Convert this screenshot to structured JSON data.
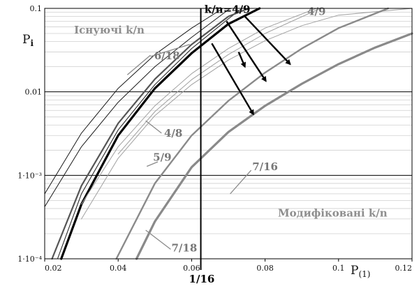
{
  "chart_data": {
    "type": "line",
    "x_label_main": "P",
    "x_label_sub": "(1)",
    "y_label_main": "P",
    "y_label_sub": "i",
    "xlim": [
      0.02,
      0.12
    ],
    "ylim": [
      0.0001,
      0.1
    ],
    "y_scale": "log",
    "x_ticks": [
      0.02,
      0.04,
      0.06,
      0.08,
      0.1,
      0.12
    ],
    "x_tick_labels": [
      "0.02",
      "0.04",
      "0.06",
      "0.08",
      "0.1",
      "0.12"
    ],
    "y_major_ticks": [
      0.0001,
      0.001,
      0.01,
      0.1
    ],
    "y_tick_labels": [
      "1·10⁻⁴",
      "1·10⁻³",
      "0.01",
      "0.1"
    ],
    "grid": {
      "horizontal_minor": true,
      "vertical": false
    },
    "vertical_marker": {
      "x": 0.0625,
      "label": "1/16"
    },
    "regions": [
      {
        "text": "Існуючі k/n",
        "x": 0.028,
        "y": 0.05
      },
      {
        "text": "Модифіковані k/n",
        "x": 0.0835,
        "y": 0.00032
      }
    ],
    "series": [
      {
        "role": "existing-thin",
        "color": "#1a1a1a",
        "width": 1.0,
        "points": [
          [
            0.02,
            0.0006
          ],
          [
            0.03,
            0.0032
          ],
          [
            0.04,
            0.011
          ],
          [
            0.05,
            0.028
          ],
          [
            0.06,
            0.058
          ],
          [
            0.0685,
            0.1
          ]
        ]
      },
      {
        "role": "existing-thin",
        "color": "#1a1a1a",
        "width": 1.0,
        "points": [
          [
            0.02,
            0.00042
          ],
          [
            0.03,
            0.0022
          ],
          [
            0.04,
            0.0075
          ],
          [
            0.05,
            0.02
          ],
          [
            0.06,
            0.045
          ],
          [
            0.0705,
            0.1
          ]
        ]
      },
      {
        "role": "existing-thin",
        "color": "#1a1a1a",
        "width": 1.0,
        "points": [
          [
            0.0235,
            0.0001
          ],
          [
            0.03,
            0.0006
          ],
          [
            0.04,
            0.0035
          ],
          [
            0.05,
            0.0122
          ],
          [
            0.06,
            0.033
          ],
          [
            0.07,
            0.075
          ],
          [
            0.0737,
            0.1
          ]
        ]
      },
      {
        "role": "existing-medium",
        "color": "#555555",
        "width": 2.2,
        "points": [
          [
            0.022,
            0.0001
          ],
          [
            0.03,
            0.00075
          ],
          [
            0.04,
            0.0042
          ],
          [
            0.05,
            0.0142
          ],
          [
            0.06,
            0.037
          ],
          [
            0.07,
            0.08
          ],
          [
            0.0755,
            0.1
          ]
        ]
      },
      {
        "role": "existing-thick",
        "color": "#000000",
        "width": 3.2,
        "points": [
          [
            0.0245,
            0.0001
          ],
          [
            0.03,
            0.00045
          ],
          [
            0.04,
            0.003
          ],
          [
            0.05,
            0.011
          ],
          [
            0.06,
            0.029
          ],
          [
            0.07,
            0.065
          ],
          [
            0.0785,
            0.1
          ]
        ]
      },
      {
        "role": "modified-thin",
        "color": "#a0a0a0",
        "width": 1.0,
        "points": [
          [
            0.03,
            0.00045
          ],
          [
            0.04,
            0.0022
          ],
          [
            0.05,
            0.0068
          ],
          [
            0.06,
            0.0165
          ],
          [
            0.07,
            0.033
          ],
          [
            0.08,
            0.058
          ],
          [
            0.094,
            0.1
          ]
        ]
      },
      {
        "role": "modified-thin",
        "color": "#a0a0a0",
        "width": 1.0,
        "points": [
          [
            0.04,
            0.0018
          ],
          [
            0.05,
            0.0058
          ],
          [
            0.06,
            0.014
          ],
          [
            0.07,
            0.028
          ],
          [
            0.08,
            0.05
          ],
          [
            0.095,
            0.1
          ]
        ]
      },
      {
        "role": "modified-thin",
        "color": "#a0a0a0",
        "width": 1.0,
        "points": [
          [
            0.03,
            0.0003
          ],
          [
            0.04,
            0.0016
          ],
          [
            0.05,
            0.0052
          ],
          [
            0.06,
            0.0122
          ],
          [
            0.07,
            0.024
          ],
          [
            0.08,
            0.041
          ],
          [
            0.09,
            0.062
          ],
          [
            0.1,
            0.083
          ],
          [
            0.12,
            0.1
          ]
        ]
      },
      {
        "role": "modified-medium",
        "color": "#8a8a8a",
        "width": 2.4,
        "points": [
          [
            0.0395,
            0.0001
          ],
          [
            0.05,
            0.0008
          ],
          [
            0.06,
            0.003
          ],
          [
            0.07,
            0.0078
          ],
          [
            0.08,
            0.017
          ],
          [
            0.09,
            0.033
          ],
          [
            0.1,
            0.058
          ],
          [
            0.1135,
            0.1
          ]
        ]
      },
      {
        "role": "modified-thick",
        "color": "#8a8a8a",
        "width": 3.2,
        "points": [
          [
            0.045,
            0.0001
          ],
          [
            0.05,
            0.00028
          ],
          [
            0.06,
            0.00125
          ],
          [
            0.07,
            0.0033
          ],
          [
            0.08,
            0.0068
          ],
          [
            0.09,
            0.0125
          ],
          [
            0.1,
            0.0215
          ],
          [
            0.11,
            0.034
          ],
          [
            0.12,
            0.05
          ]
        ]
      }
    ],
    "annotations": [
      {
        "text": "k/n=4/9",
        "x": 0.0635,
        "y": 0.088,
        "color": "#000000"
      },
      {
        "text": "4/9",
        "x": 0.0915,
        "y": 0.083,
        "color": "#777777"
      },
      {
        "text": "6/18",
        "x": 0.0498,
        "y": 0.0245,
        "color": "#777777"
      },
      {
        "text": "4/8",
        "x": 0.0525,
        "y": 0.0029,
        "color": "#777777"
      },
      {
        "text": "5/9",
        "x": 0.0495,
        "y": 0.0015,
        "color": "#777777"
      },
      {
        "text": "7/16",
        "x": 0.0765,
        "y": 0.00115,
        "color": "#777777"
      },
      {
        "text": "7/18",
        "x": 0.0545,
        "y": 0.000122,
        "color": "#777777"
      }
    ],
    "pointers": [
      {
        "from": [
          0.0488,
          0.0275
        ],
        "to": [
          0.0425,
          0.016
        ]
      },
      {
        "from": [
          0.0488,
          0.0265
        ],
        "to": [
          0.0595,
          0.037
        ]
      },
      {
        "from": [
          0.0518,
          0.0032
        ],
        "to": [
          0.0475,
          0.0045
        ]
      },
      {
        "from": [
          0.0508,
          0.00145
        ],
        "to": [
          0.0478,
          0.00128
        ]
      },
      {
        "from": [
          0.0762,
          0.00115
        ],
        "to": [
          0.0705,
          0.0006
        ]
      },
      {
        "from": [
          0.0543,
          0.00013
        ],
        "to": [
          0.0475,
          0.00022
        ]
      }
    ],
    "arrows": [
      {
        "from": [
          0.0695,
          0.07
        ],
        "to": [
          0.0802,
          0.0135
        ]
      },
      {
        "from": [
          0.0745,
          0.08
        ],
        "to": [
          0.0868,
          0.0215
        ]
      },
      {
        "from": [
          0.0655,
          0.038
        ],
        "to": [
          0.0768,
          0.0054
        ]
      },
      {
        "from": [
          0.0728,
          0.03
        ],
        "to": [
          0.0745,
          0.02
        ]
      }
    ]
  }
}
